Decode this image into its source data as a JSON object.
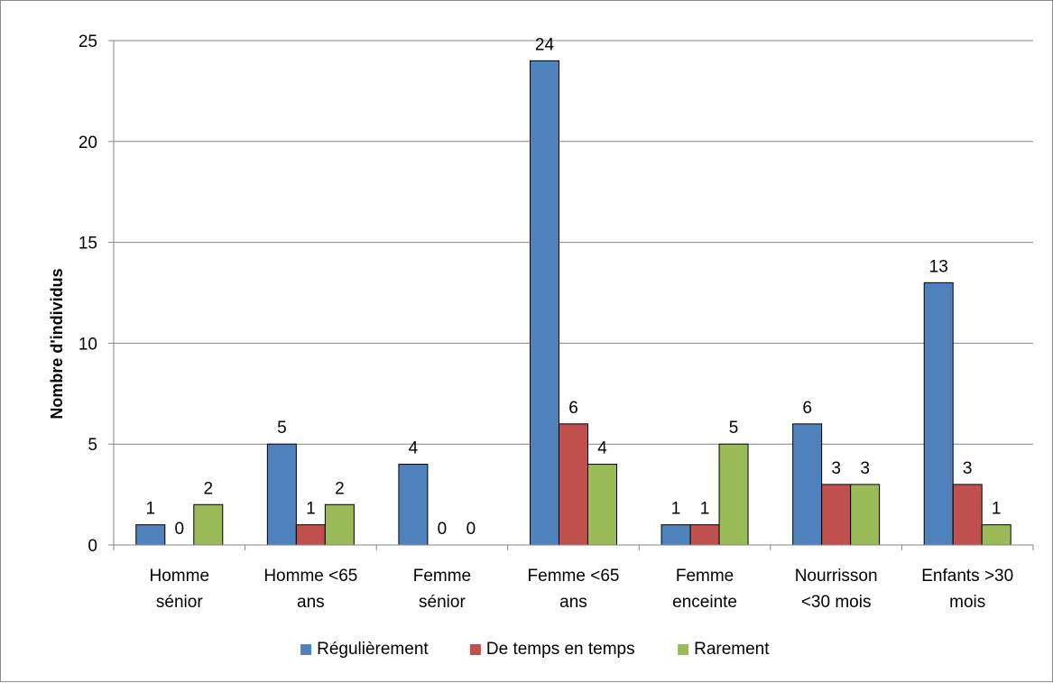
{
  "chart_data": {
    "type": "bar",
    "title": "",
    "xlabel": "",
    "ylabel": "Nombre d'individus",
    "ylim": [
      0,
      25
    ],
    "yticks": [
      0,
      5,
      10,
      15,
      20,
      25
    ],
    "grid": "horizontal",
    "legend_position": "bottom",
    "categories": [
      [
        "Homme",
        "sénior"
      ],
      [
        "Homme <65",
        "ans"
      ],
      [
        "Femme",
        "sénior"
      ],
      [
        "Femme <65",
        "ans"
      ],
      [
        "Femme",
        "enceinte"
      ],
      [
        "Nourrisson",
        "<30 mois"
      ],
      [
        "Enfants >30",
        "mois"
      ]
    ],
    "series": [
      {
        "name": "Régulièrement",
        "color": "#4F81BD",
        "values": [
          1,
          5,
          4,
          24,
          1,
          6,
          13
        ]
      },
      {
        "name": "De temps en temps",
        "color": "#C0504D",
        "values": [
          0,
          1,
          0,
          6,
          1,
          3,
          3
        ]
      },
      {
        "name": "Rarement",
        "color": "#9BBB59",
        "values": [
          2,
          2,
          0,
          4,
          5,
          3,
          1
        ]
      }
    ]
  }
}
